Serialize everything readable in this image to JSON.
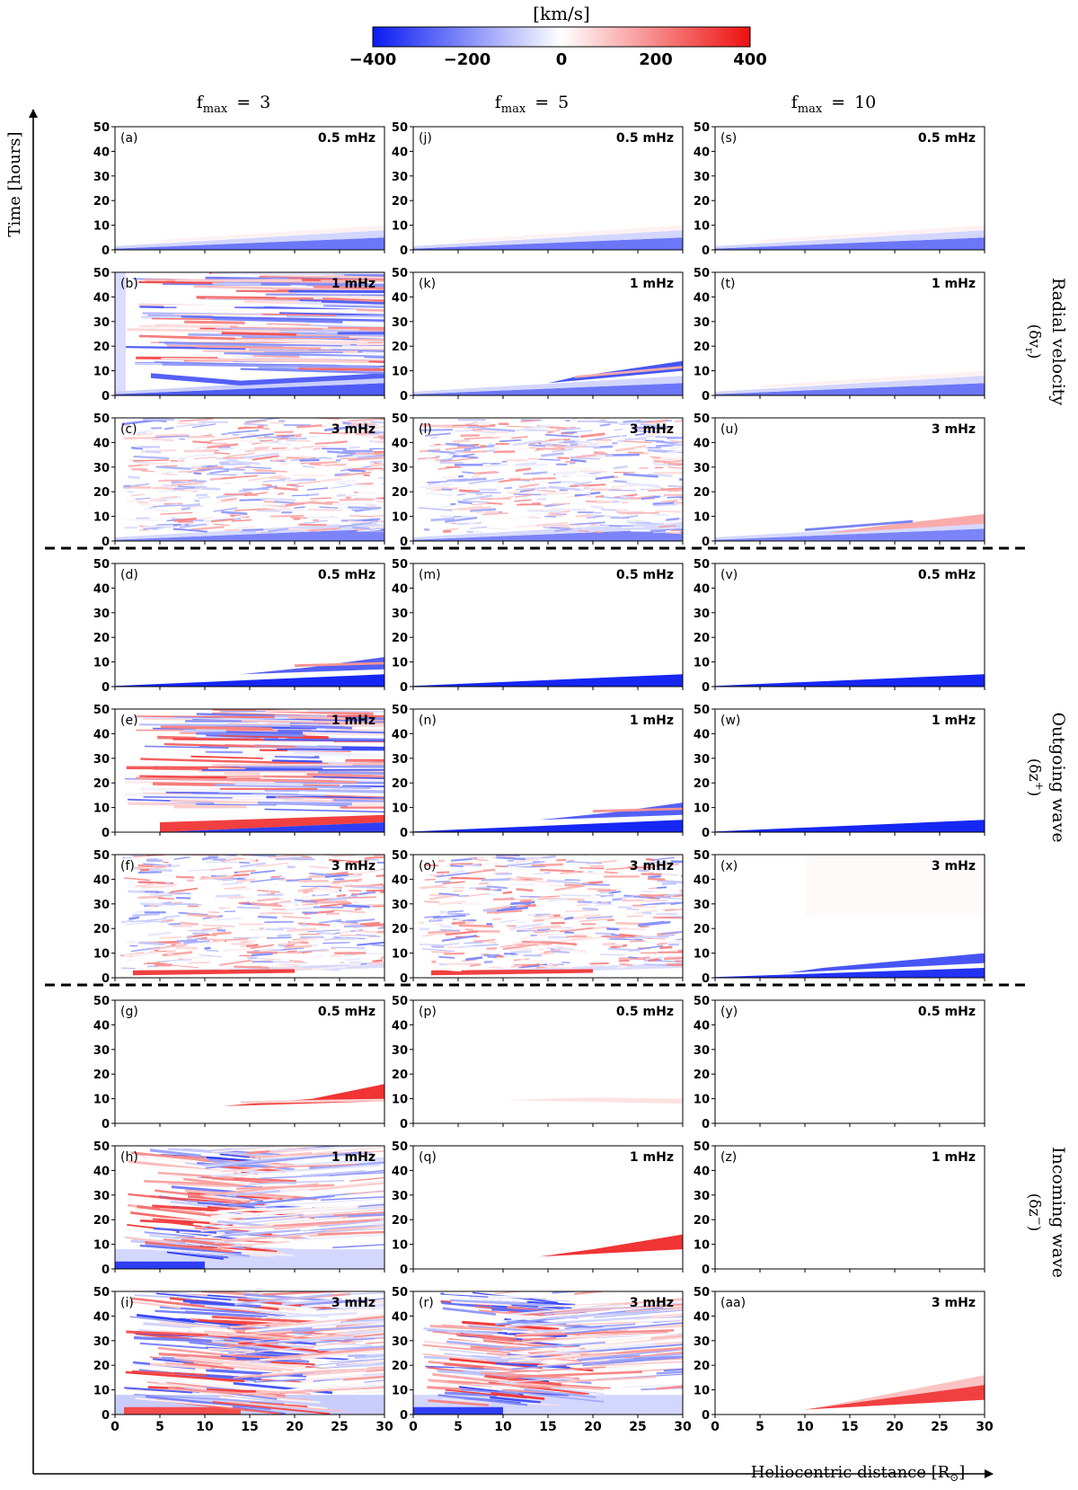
{
  "chart_data": {
    "type": "heatmap",
    "colorbar": {
      "label": "[km/s]",
      "ticks": [
        "−400",
        "−200",
        "0",
        "200",
        "400"
      ],
      "tick_values": [
        -400,
        -200,
        0,
        200,
        400
      ],
      "vmin": -400,
      "vmax": 400,
      "colors": {
        "low": "#0a1cf2",
        "mid": "#ffffff",
        "high": "#ee1010"
      }
    },
    "columns": [
      {
        "title": "f",
        "subscript": "max",
        "eq": "=",
        "value": "3"
      },
      {
        "title": "f",
        "subscript": "max",
        "eq": "=",
        "value": "5"
      },
      {
        "title": "f",
        "subscript": "max",
        "eq": "=",
        "value": "10"
      }
    ],
    "row_groups": [
      {
        "label": "Radial velocity",
        "symbol": "(δv",
        "symbol_sub": "r",
        "symbol_end": ")"
      },
      {
        "label": "Outgoing wave",
        "symbol": "(δz",
        "symbol_sup": "+",
        "symbol_end": ")"
      },
      {
        "label": "Incoming wave",
        "symbol": "(δz",
        "symbol_sup": "−",
        "symbol_end": ")"
      }
    ],
    "frequencies": [
      "0.5 mHz",
      "1 mHz",
      "3 mHz"
    ],
    "panel_labels": [
      [
        "(a)",
        "(j)",
        "(s)"
      ],
      [
        "(b)",
        "(k)",
        "(t)"
      ],
      [
        "(c)",
        "(l)",
        "(u)"
      ],
      [
        "(d)",
        "(m)",
        "(v)"
      ],
      [
        "(e)",
        "(n)",
        "(w)"
      ],
      [
        "(f)",
        "(o)",
        "(x)"
      ],
      [
        "(g)",
        "(p)",
        "(y)"
      ],
      [
        "(h)",
        "(q)",
        "(z)"
      ],
      [
        "(i)",
        "(r)",
        "(aa)"
      ]
    ],
    "ylabel": "Time [hours]",
    "xlabel": "Heliocentric distance [R",
    "xlabel_sub": "⊙",
    "xlabel_end": "]",
    "xlim": [
      0,
      30
    ],
    "ylim": [
      0,
      50
    ],
    "xticks": [
      0,
      5,
      10,
      15,
      20,
      25,
      30
    ],
    "yticks": [
      0,
      10,
      20,
      30,
      40,
      50
    ],
    "patterns": [
      [
        "lowband",
        "lowband",
        "lowband"
      ],
      [
        "chaos",
        "lowband_streak",
        "lowband"
      ],
      [
        "noise",
        "noise",
        "lowband_mid"
      ],
      [
        "wedge_blob",
        "wedge",
        "wedge"
      ],
      [
        "chaos_red",
        "wedge_blob",
        "wedge"
      ],
      [
        "noise_red",
        "noise_red",
        "wedge_double"
      ],
      [
        "red_blob",
        "faint",
        "empty"
      ],
      [
        "vpattern",
        "red_band",
        "empty"
      ],
      [
        "vpattern_noisy",
        "vpattern",
        "red_wedge"
      ]
    ]
  }
}
